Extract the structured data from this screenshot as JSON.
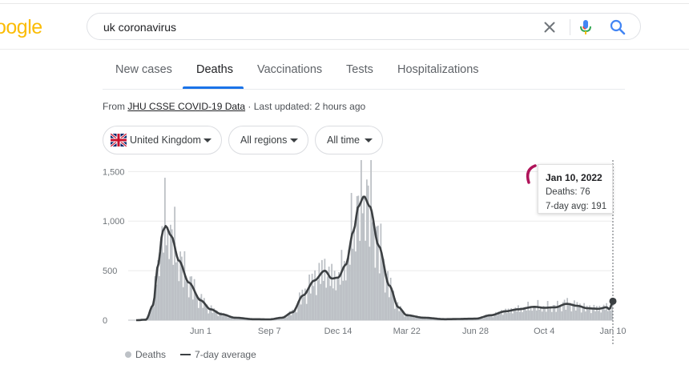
{
  "header": {
    "logo_text": "oogle",
    "search": {
      "value": "uk coronavirus",
      "placeholder": ""
    },
    "icons": {
      "clear": "close-icon",
      "voice": "microphone-icon",
      "search": "search-icon"
    }
  },
  "tabs": [
    {
      "label": "New cases",
      "active": false
    },
    {
      "label": "Deaths",
      "active": true
    },
    {
      "label": "Vaccinations",
      "active": false
    },
    {
      "label": "Tests",
      "active": false
    },
    {
      "label": "Hospitalizations",
      "active": false
    }
  ],
  "source": {
    "prefix": "From ",
    "link": "JHU CSSE COVID-19 Data",
    "updated": " · Last updated: 2 hours ago"
  },
  "filters": {
    "country": "United Kingdom",
    "region": "All regions",
    "time": "All time"
  },
  "tooltip": {
    "date": "Jan 10, 2022",
    "deaths_label": "Deaths: ",
    "deaths_value": "76",
    "avg_label": "7-day avg: ",
    "avg_value": "191"
  },
  "legend": {
    "bars": "Deaths",
    "line": "7-day average"
  },
  "colors": {
    "bar": "#bdc1c6",
    "line": "#3c4043",
    "accent": "#1a73e8",
    "annotation": "#b0145a"
  },
  "chart_data": {
    "type": "bar",
    "title": "",
    "xlabel": "",
    "ylabel": "",
    "ylim": [
      0,
      1650
    ],
    "y_ticks": [
      0,
      500,
      1000,
      1500
    ],
    "y_tick_labels": [
      "0",
      "500",
      "1,000",
      "1,500"
    ],
    "x_tick_labels": [
      "Jun 1",
      "Sep 7",
      "Dec 14",
      "Mar 22",
      "Jun 28",
      "Oct 4",
      "Jan 10"
    ],
    "x_tick_dates": [
      "2020-06-01",
      "2020-09-07",
      "2020-12-14",
      "2021-03-22",
      "2021-06-28",
      "2021-10-04",
      "2022-01-10"
    ],
    "x_range": [
      "2020-03-01",
      "2022-01-10"
    ],
    "grid": true,
    "legend": "bottom-left",
    "series": [
      {
        "name": "Deaths",
        "type": "bar",
        "values": "daily values, approximated by the 7-day average profile with weekly reporting variation"
      },
      {
        "name": "7-day average",
        "type": "line",
        "points": [
          [
            "2020-03-01",
            0
          ],
          [
            "2020-03-15",
            5
          ],
          [
            "2020-03-25",
            150
          ],
          [
            "2020-04-01",
            550
          ],
          [
            "2020-04-08",
            900
          ],
          [
            "2020-04-12",
            950
          ],
          [
            "2020-04-20",
            850
          ],
          [
            "2020-05-01",
            600
          ],
          [
            "2020-05-15",
            380
          ],
          [
            "2020-06-01",
            200
          ],
          [
            "2020-06-15",
            110
          ],
          [
            "2020-07-01",
            60
          ],
          [
            "2020-07-20",
            25
          ],
          [
            "2020-08-15",
            10
          ],
          [
            "2020-09-07",
            8
          ],
          [
            "2020-09-25",
            25
          ],
          [
            "2020-10-10",
            80
          ],
          [
            "2020-10-25",
            250
          ],
          [
            "2020-11-10",
            400
          ],
          [
            "2020-11-25",
            500
          ],
          [
            "2020-12-05",
            420
          ],
          [
            "2020-12-14",
            430
          ],
          [
            "2020-12-25",
            560
          ],
          [
            "2021-01-05",
            900
          ],
          [
            "2021-01-12",
            1150
          ],
          [
            "2021-01-20",
            1250
          ],
          [
            "2021-01-28",
            1150
          ],
          [
            "2021-02-10",
            750
          ],
          [
            "2021-02-25",
            350
          ],
          [
            "2021-03-10",
            130
          ],
          [
            "2021-03-22",
            50
          ],
          [
            "2021-04-15",
            25
          ],
          [
            "2021-05-15",
            10
          ],
          [
            "2021-06-28",
            15
          ],
          [
            "2021-07-20",
            50
          ],
          [
            "2021-08-10",
            90
          ],
          [
            "2021-08-28",
            110
          ],
          [
            "2021-09-20",
            135
          ],
          [
            "2021-10-04",
            125
          ],
          [
            "2021-10-20",
            130
          ],
          [
            "2021-11-05",
            165
          ],
          [
            "2021-11-20",
            145
          ],
          [
            "2021-12-05",
            120
          ],
          [
            "2021-12-20",
            115
          ],
          [
            "2022-01-01",
            130
          ],
          [
            "2022-01-05",
            110
          ],
          [
            "2022-01-10",
            191
          ]
        ]
      }
    ]
  }
}
